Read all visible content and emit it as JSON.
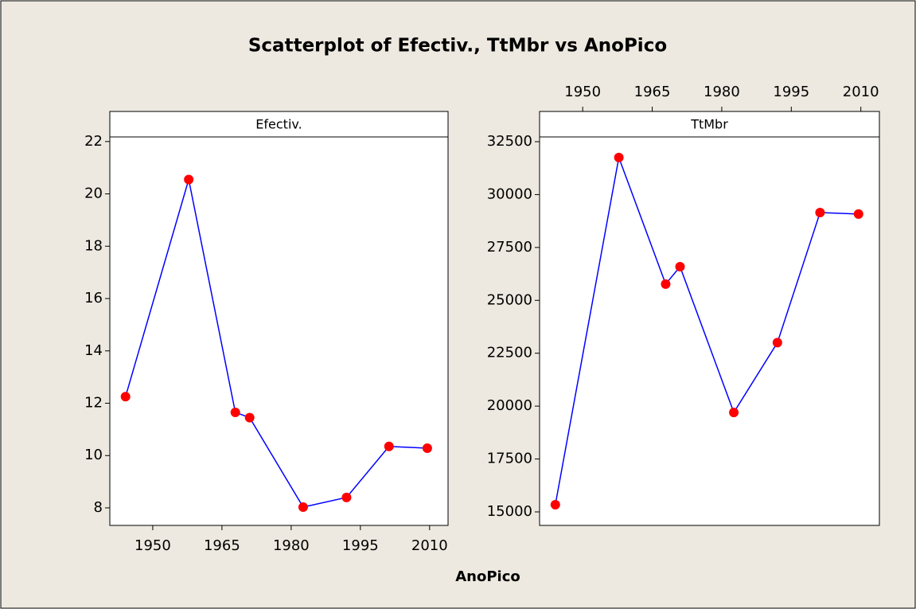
{
  "chart_data": [
    {
      "type": "scatter",
      "title": "Scatterplot of Efectiv., TtMbr vs AnoPico",
      "x_label": "AnoPico",
      "panel": "Efectiv.",
      "x": [
        1944.1,
        1957.8,
        1967.9,
        1971,
        1982.6,
        1992,
        2001.2,
        2009.5
      ],
      "values": [
        12.25,
        20.55,
        11.65,
        11.45,
        8.03,
        8.4,
        10.35,
        10.28
      ],
      "xlim": [
        1940.7,
        2014
      ],
      "xticks": [
        1950,
        1965,
        1980,
        1995,
        2010
      ],
      "ylim": [
        7.33,
        23.15
      ],
      "yticks": [
        8,
        10,
        12,
        14,
        16,
        18,
        20,
        22
      ],
      "line_color": "#0000ff",
      "marker_color": "#ff0000",
      "x_axis": "bottom"
    },
    {
      "type": "scatter",
      "panel": "TtMbr",
      "x": [
        1944.1,
        1957.8,
        1967.9,
        1971,
        1982.6,
        1992,
        2001.2,
        2009.5
      ],
      "values": [
        15340,
        31750,
        25770,
        26590,
        19700,
        23000,
        29150,
        29080
      ],
      "xlim": [
        1940.7,
        2014
      ],
      "xticks": [
        1950,
        1965,
        1980,
        1995,
        2010
      ],
      "ylim": [
        14360,
        33930
      ],
      "yticks": [
        15000,
        17500,
        20000,
        22500,
        25000,
        27500,
        30000,
        32500
      ],
      "line_color": "#0000ff",
      "marker_color": "#ff0000",
      "x_axis": "top"
    }
  ]
}
